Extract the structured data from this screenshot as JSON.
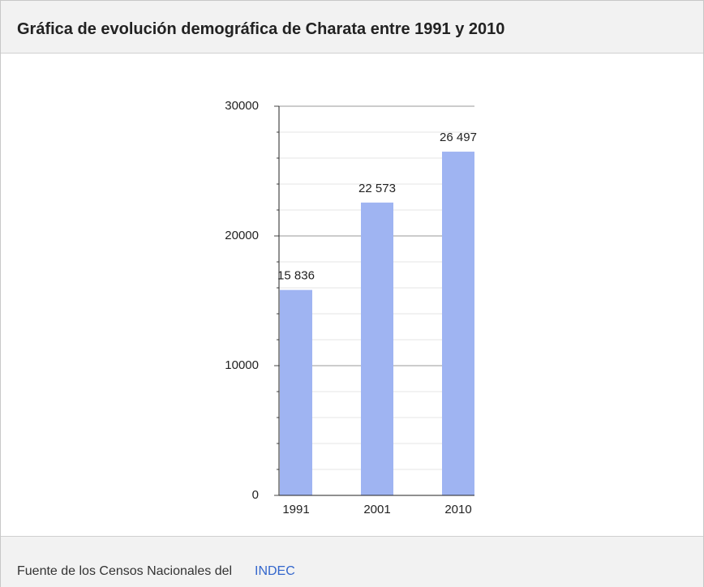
{
  "chart_data": {
    "type": "bar",
    "title": "Gráfica de evolución demográfica de Charata entre 1991 y 2010",
    "categories": [
      "1991",
      "2001",
      "2010"
    ],
    "values": [
      15836,
      22573,
      26497
    ],
    "value_labels": [
      "15 836",
      "22 573",
      "26 497"
    ],
    "color": "#9fb4f2",
    "ylim": [
      0,
      30000
    ],
    "yticks": [
      0,
      10000,
      20000,
      30000
    ],
    "minor_yticks": [
      2000,
      4000,
      6000,
      8000,
      12000,
      14000,
      16000,
      18000,
      22000,
      24000,
      26000,
      28000
    ],
    "grid": true
  },
  "footer": {
    "text": "Fuente de los Censos Nacionales del",
    "link": "INDEC"
  }
}
